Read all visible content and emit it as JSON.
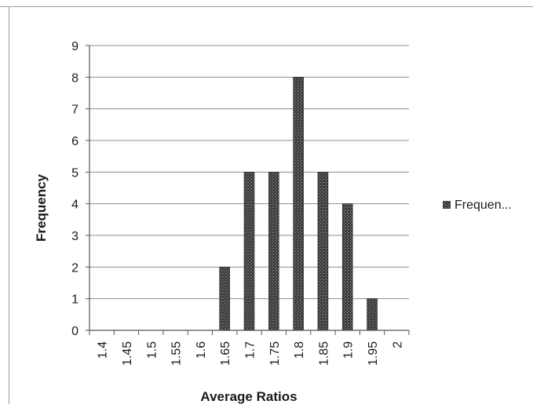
{
  "chart_data": {
    "type": "bar",
    "categories": [
      "1.4",
      "1.45",
      "1.5",
      "1.55",
      "1.6",
      "1.65",
      "1.7",
      "1.75",
      "1.8",
      "1.85",
      "1.9",
      "1.95",
      "2"
    ],
    "series": [
      {
        "name": "Frequen...",
        "values": [
          0,
          0,
          0,
          0,
          0,
          2,
          5,
          5,
          8,
          5,
          4,
          1,
          0
        ],
        "color": "#4a4a4a"
      }
    ],
    "xlabel": "Average Ratios",
    "ylabel": "Frequency",
    "ylim": [
      0,
      9
    ],
    "yticks": [
      "0",
      "1",
      "2",
      "3",
      "4",
      "5",
      "6",
      "7",
      "8",
      "9"
    ],
    "grid": true,
    "legend_position": "right"
  }
}
